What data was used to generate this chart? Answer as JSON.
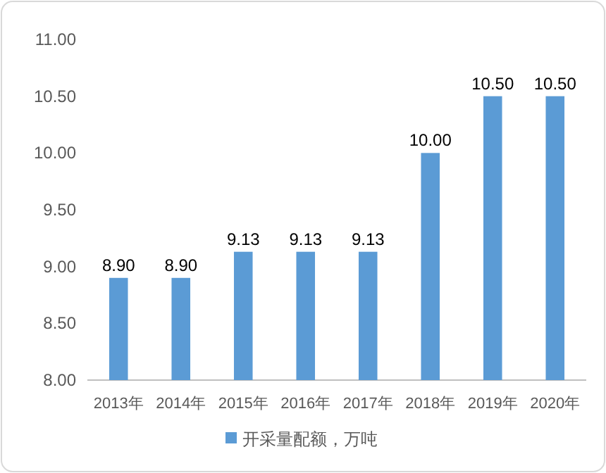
{
  "chart_data": {
    "type": "bar",
    "categories": [
      "2013年",
      "2014年",
      "2015年",
      "2016年",
      "2017年",
      "2018年",
      "2019年",
      "2020年"
    ],
    "series": [
      {
        "name": "开采量配额，万吨",
        "color": "#5b9bd5",
        "values": [
          8.9,
          8.9,
          9.13,
          9.13,
          9.13,
          10.0,
          10.5,
          10.5
        ],
        "value_labels": [
          "8.90",
          "8.90",
          "9.13",
          "9.13",
          "9.13",
          "10.00",
          "10.50",
          "10.50"
        ]
      }
    ],
    "ylim": [
      8,
      11
    ],
    "yticks": [
      {
        "value": 8,
        "label": "8.00"
      },
      {
        "value": 8.5,
        "label": "8.50"
      },
      {
        "value": 9,
        "label": "9.00"
      },
      {
        "value": 9.5,
        "label": "9.50"
      },
      {
        "value": 10,
        "label": "10.00"
      },
      {
        "value": 10.5,
        "label": "10.50"
      },
      {
        "value": 11,
        "label": "11.00"
      }
    ],
    "grid": false,
    "legend": "bottom"
  }
}
